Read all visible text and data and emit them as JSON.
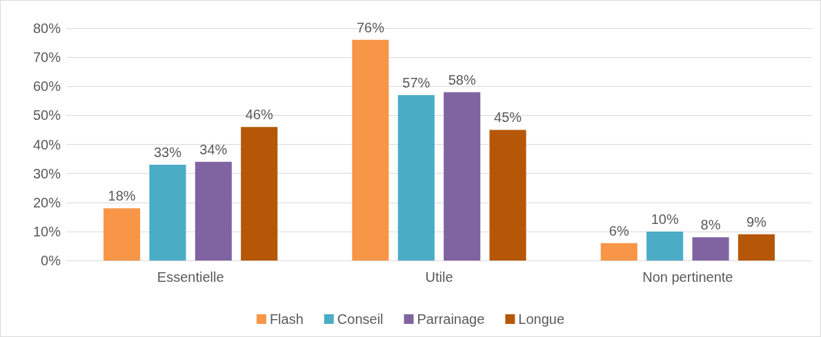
{
  "chart_data": {
    "type": "bar",
    "categories": [
      "Essentielle",
      "Utile",
      "Non pertinente"
    ],
    "series": [
      {
        "name": "Flash",
        "color": "#f79646",
        "values": [
          18,
          76,
          6
        ],
        "value_labels": [
          "18%",
          "76%",
          "6%"
        ]
      },
      {
        "name": "Conseil",
        "color": "#4bacc6",
        "values": [
          33,
          57,
          10
        ],
        "value_labels": [
          "33%",
          "57%",
          "10%"
        ]
      },
      {
        "name": "Parrainage",
        "color": "#8064a2",
        "values": [
          34,
          58,
          8
        ],
        "value_labels": [
          "34%",
          "58%",
          "8%"
        ]
      },
      {
        "name": "Longue",
        "color": "#b65708",
        "values": [
          46,
          45,
          9
        ],
        "value_labels": [
          "46%",
          "45%",
          "9%"
        ]
      }
    ],
    "ylim": [
      0,
      80
    ],
    "yticks": [
      {
        "value": 0,
        "label": "0%"
      },
      {
        "value": 10,
        "label": "10%"
      },
      {
        "value": 20,
        "label": "20%"
      },
      {
        "value": 30,
        "label": "30%"
      },
      {
        "value": 40,
        "label": "40%"
      },
      {
        "value": 50,
        "label": "50%"
      },
      {
        "value": 60,
        "label": "60%"
      },
      {
        "value": 70,
        "label": "70%"
      },
      {
        "value": 80,
        "label": "80%"
      }
    ],
    "grid": "y",
    "legend": "bottom"
  }
}
